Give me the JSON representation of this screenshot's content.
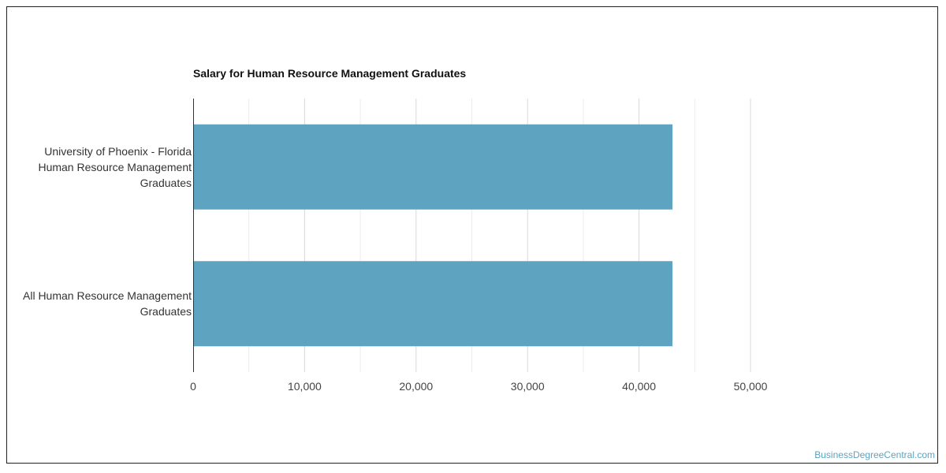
{
  "chart_data": {
    "type": "bar",
    "orientation": "horizontal",
    "title": "Salary for Human Resource Management Graduates",
    "categories": [
      [
        "University of Phoenix - Florida",
        "Human Resource Management",
        "Graduates"
      ],
      [
        "All Human Resource Management",
        "Graduates"
      ]
    ],
    "values": [
      43000,
      43000
    ],
    "xlim": [
      0,
      55000
    ],
    "x_ticks": [
      0,
      10000,
      20000,
      30000,
      40000,
      50000
    ],
    "x_tick_labels": [
      "0",
      "10,000",
      "20,000",
      "30,000",
      "40,000",
      "50,000"
    ],
    "minor_gridlines": true,
    "bar_color": "#5ea3c0",
    "grid_color": "#d9d9d9"
  },
  "watermark": {
    "text": "BusinessDegreeCentral.com",
    "color": "#5ea3c0"
  }
}
